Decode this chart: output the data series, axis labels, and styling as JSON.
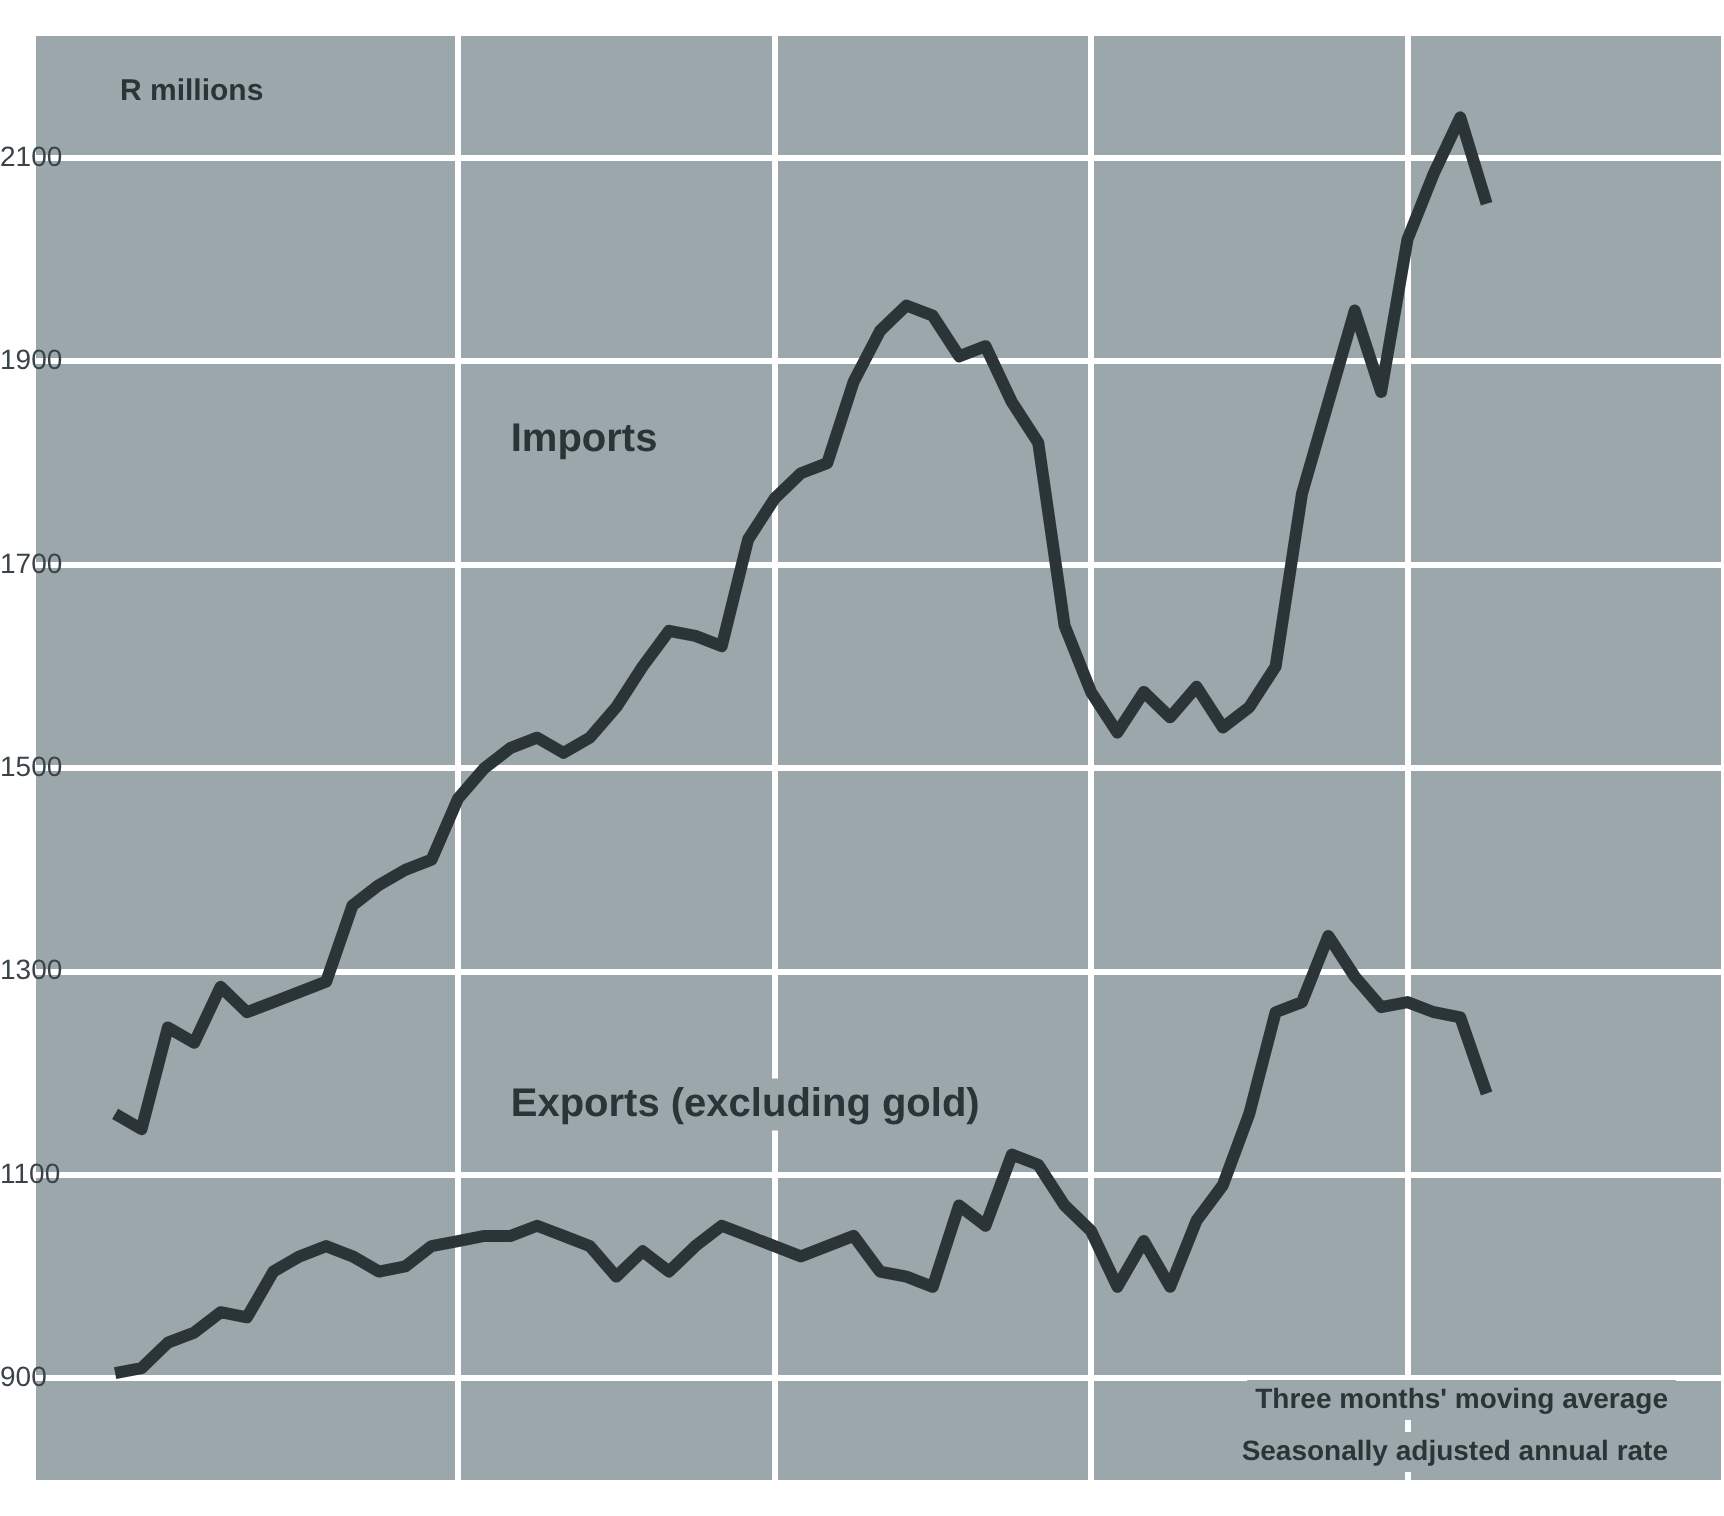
{
  "chart_data": {
    "type": "line",
    "ylabel": "R millions",
    "categories": [
      null,
      null,
      null,
      null,
      null,
      null,
      null,
      null,
      null,
      null,
      null,
      null,
      null,
      null,
      null,
      null,
      null,
      null,
      null,
      null,
      null,
      null,
      null,
      null,
      null,
      null,
      null,
      null,
      null,
      null,
      null,
      null,
      null,
      null,
      null,
      null,
      null,
      null,
      null,
      null,
      null,
      null,
      null,
      null,
      null,
      null,
      null,
      null,
      null,
      null,
      null,
      null,
      null,
      null,
      null,
      null,
      null,
      null,
      null,
      null,
      null,
      null,
      null,
      null,
      null
    ],
    "series": [
      {
        "name": "Imports",
        "color": "#2b3437",
        "values": [
          null,
          null,
          null,
          1160,
          1145,
          1245,
          1230,
          1285,
          1260,
          1270,
          1280,
          1290,
          1365,
          1385,
          1400,
          1410,
          1470,
          1500,
          1520,
          1530,
          1515,
          1530,
          1560,
          1600,
          1635,
          1630,
          1620,
          1725,
          1765,
          1790,
          1800,
          1880,
          1930,
          1955,
          1945,
          1905,
          1915,
          1860,
          1820,
          1640,
          1575,
          1535,
          1575,
          1550,
          1580,
          1540,
          1560,
          1600,
          1770,
          1860,
          1950,
          1870,
          2020,
          2085,
          2140,
          2055,
          null,
          null,
          null,
          null,
          null,
          null,
          null,
          null,
          null
        ]
      },
      {
        "name": "Exports (excluding gold)",
        "color": "#2b3437",
        "values": [
          null,
          null,
          null,
          905,
          910,
          935,
          945,
          965,
          960,
          1005,
          1020,
          1030,
          1020,
          1005,
          1010,
          1030,
          1035,
          1040,
          1040,
          1050,
          1040,
          1030,
          1000,
          1025,
          1005,
          1030,
          1050,
          1040,
          1030,
          1020,
          1030,
          1040,
          1005,
          1000,
          990,
          1070,
          1050,
          1120,
          1110,
          1070,
          1045,
          990,
          1035,
          990,
          1055,
          1090,
          1160,
          1260,
          1270,
          1335,
          1295,
          1265,
          1270,
          1260,
          1255,
          1180,
          null,
          null,
          null,
          null,
          null,
          null,
          null,
          null,
          null
        ]
      }
    ],
    "ylim": [
      800,
      2220
    ],
    "yticks": [
      900,
      1100,
      1300,
      1500,
      1700,
      1900,
      2100
    ],
    "grid": true,
    "legend": false,
    "tick_labels": "y",
    "marker": "none",
    "line_style": "solid",
    "annotations": [
      "Three months' moving average",
      "Seasonally adjusted annual rate"
    ]
  }
}
